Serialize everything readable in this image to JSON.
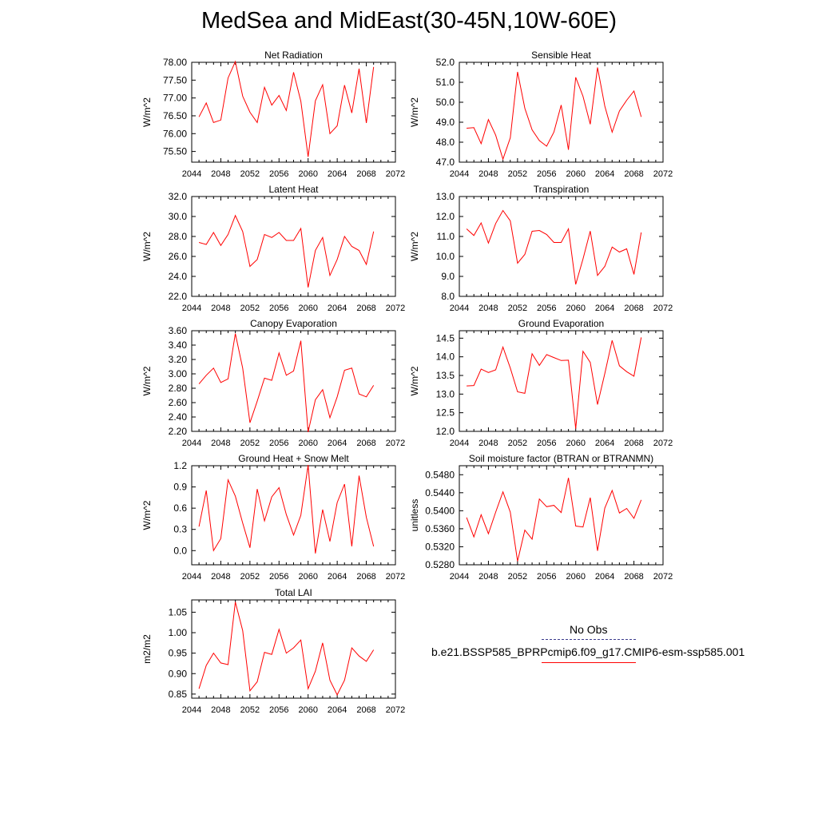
{
  "title": "MedSea and MidEast(30-45N,10W-60E)",
  "colors": {
    "series": "#ff0000",
    "obs": "#3a3a8c",
    "axis": "#000000"
  },
  "legend": {
    "obs_label": "No Obs",
    "model_label": "b.e21.BSSP585_BPRPcmip6.f09_g17.CMIP6-esm-ssp585.001"
  },
  "chart_data": [
    {
      "type": "line",
      "title": "Net Radiation",
      "ylabel": "W/m^2",
      "xlabel": "",
      "xlim": [
        2044,
        2072
      ],
      "ylim": [
        75.2,
        78.0
      ],
      "xticks": [
        2044,
        2048,
        2052,
        2056,
        2060,
        2064,
        2068,
        2072
      ],
      "yticks": [
        "75.50",
        "76.00",
        "76.50",
        "77.00",
        "77.50",
        "78.00"
      ],
      "series": [
        {
          "color": "#ff0000",
          "x": [
            2045,
            2046,
            2047,
            2048,
            2049,
            2050,
            2051,
            2052,
            2053,
            2054,
            2055,
            2056,
            2057,
            2058,
            2059,
            2060,
            2061,
            2062,
            2063,
            2064,
            2065,
            2066,
            2067,
            2068,
            2069
          ],
          "values": [
            76.47,
            76.86,
            76.31,
            76.38,
            77.56,
            78.02,
            77.05,
            76.6,
            76.31,
            77.3,
            76.8,
            77.07,
            76.65,
            77.72,
            76.91,
            75.35,
            76.92,
            77.37,
            76.0,
            76.22,
            77.36,
            76.58,
            77.82,
            76.3,
            77.87
          ]
        }
      ]
    },
    {
      "type": "line",
      "title": "Sensible Heat",
      "ylabel": "W/m^2",
      "xlabel": "",
      "xlim": [
        2044,
        2072
      ],
      "ylim": [
        47.0,
        52.0
      ],
      "xticks": [
        2044,
        2048,
        2052,
        2056,
        2060,
        2064,
        2068,
        2072
      ],
      "yticks": [
        "47.0",
        "48.0",
        "49.0",
        "50.0",
        "51.0",
        "52.0"
      ],
      "series": [
        {
          "color": "#ff0000",
          "x": [
            2045,
            2046,
            2047,
            2048,
            2049,
            2050,
            2051,
            2052,
            2053,
            2054,
            2055,
            2056,
            2057,
            2058,
            2059,
            2060,
            2061,
            2062,
            2063,
            2064,
            2065,
            2066,
            2067,
            2068,
            2069
          ],
          "values": [
            48.7,
            48.73,
            47.93,
            49.13,
            48.35,
            47.15,
            48.22,
            51.52,
            49.7,
            48.62,
            48.08,
            47.8,
            48.51,
            49.86,
            47.62,
            51.25,
            50.3,
            48.9,
            51.74,
            49.81,
            48.5,
            49.56,
            50.1,
            50.56,
            49.27
          ]
        }
      ]
    },
    {
      "type": "line",
      "title": "Latent Heat",
      "ylabel": "W/m^2",
      "xlabel": "",
      "xlim": [
        2044,
        2072
      ],
      "ylim": [
        22.0,
        32.0
      ],
      "xticks": [
        2044,
        2048,
        2052,
        2056,
        2060,
        2064,
        2068,
        2072
      ],
      "yticks": [
        "22.0",
        "24.0",
        "26.0",
        "28.0",
        "30.0",
        "32.0"
      ],
      "series": [
        {
          "color": "#ff0000",
          "x": [
            2045,
            2046,
            2047,
            2048,
            2049,
            2050,
            2051,
            2052,
            2053,
            2054,
            2055,
            2056,
            2057,
            2058,
            2059,
            2060,
            2061,
            2062,
            2063,
            2064,
            2065,
            2066,
            2067,
            2068,
            2069
          ],
          "values": [
            27.4,
            27.2,
            28.4,
            27.1,
            28.2,
            30.1,
            28.5,
            25.0,
            25.7,
            28.2,
            27.9,
            28.4,
            27.6,
            27.6,
            28.8,
            22.9,
            26.6,
            27.9,
            24.1,
            25.7,
            28.0,
            27.0,
            26.6,
            25.2,
            28.5
          ]
        }
      ]
    },
    {
      "type": "line",
      "title": "Transpiration",
      "ylabel": "W/m^2",
      "xlabel": "",
      "xlim": [
        2044,
        2072
      ],
      "ylim": [
        8.0,
        13.0
      ],
      "xticks": [
        2044,
        2048,
        2052,
        2056,
        2060,
        2064,
        2068,
        2072
      ],
      "yticks": [
        "8.0",
        "9.0",
        "10.0",
        "11.0",
        "12.0",
        "13.0"
      ],
      "series": [
        {
          "color": "#ff0000",
          "x": [
            2045,
            2046,
            2047,
            2048,
            2049,
            2050,
            2051,
            2052,
            2053,
            2054,
            2055,
            2056,
            2057,
            2058,
            2059,
            2060,
            2061,
            2062,
            2063,
            2064,
            2065,
            2066,
            2067,
            2068,
            2069
          ],
          "values": [
            11.38,
            11.05,
            11.68,
            10.67,
            11.65,
            12.3,
            11.78,
            9.66,
            10.1,
            11.26,
            11.3,
            11.1,
            10.7,
            10.7,
            11.38,
            8.6,
            9.87,
            11.27,
            9.05,
            9.5,
            10.47,
            10.22,
            10.38,
            9.1,
            11.2
          ]
        }
      ]
    },
    {
      "type": "line",
      "title": "Canopy Evaporation",
      "ylabel": "W/m^2",
      "xlabel": "",
      "xlim": [
        2044,
        2072
      ],
      "ylim": [
        2.2,
        3.6
      ],
      "xticks": [
        2044,
        2048,
        2052,
        2056,
        2060,
        2064,
        2068,
        2072
      ],
      "yticks": [
        "2.20",
        "2.40",
        "2.60",
        "2.80",
        "3.00",
        "3.20",
        "3.40",
        "3.60"
      ],
      "series": [
        {
          "color": "#ff0000",
          "x": [
            2045,
            2046,
            2047,
            2048,
            2049,
            2050,
            2051,
            2052,
            2053,
            2054,
            2055,
            2056,
            2057,
            2058,
            2059,
            2060,
            2061,
            2062,
            2063,
            2064,
            2065,
            2066,
            2067,
            2068,
            2069
          ],
          "values": [
            2.86,
            2.98,
            3.08,
            2.88,
            2.93,
            3.56,
            3.08,
            2.32,
            2.62,
            2.94,
            2.91,
            3.29,
            2.98,
            3.04,
            3.46,
            2.19,
            2.64,
            2.78,
            2.39,
            2.68,
            3.05,
            3.08,
            2.72,
            2.68,
            2.84
          ]
        }
      ]
    },
    {
      "type": "line",
      "title": "Ground Evaporation",
      "ylabel": "W/m^2",
      "xlabel": "",
      "xlim": [
        2044,
        2072
      ],
      "ylim": [
        12.0,
        14.7
      ],
      "xticks": [
        2044,
        2048,
        2052,
        2056,
        2060,
        2064,
        2068,
        2072
      ],
      "yticks": [
        "12.0",
        "12.5",
        "13.0",
        "13.5",
        "14.0",
        "14.5"
      ],
      "series": [
        {
          "color": "#ff0000",
          "x": [
            2045,
            2046,
            2047,
            2048,
            2049,
            2050,
            2051,
            2052,
            2053,
            2054,
            2055,
            2056,
            2057,
            2058,
            2059,
            2060,
            2061,
            2062,
            2063,
            2064,
            2065,
            2066,
            2067,
            2068,
            2069
          ],
          "values": [
            13.22,
            13.23,
            13.67,
            13.58,
            13.65,
            14.26,
            13.7,
            13.06,
            13.02,
            14.08,
            13.77,
            14.06,
            13.98,
            13.9,
            13.91,
            12.07,
            14.15,
            13.85,
            12.72,
            13.55,
            14.44,
            13.76,
            13.6,
            13.48,
            14.52
          ]
        }
      ]
    },
    {
      "type": "line",
      "title": "Ground Heat + Snow Melt",
      "ylabel": "W/m^2",
      "xlabel": "",
      "xlim": [
        2044,
        2072
      ],
      "ylim": [
        -0.2,
        1.2
      ],
      "xticks": [
        2044,
        2048,
        2052,
        2056,
        2060,
        2064,
        2068,
        2072
      ],
      "yticks": [
        "0.0",
        "0.3",
        "0.6",
        "0.9",
        "1.2"
      ],
      "series": [
        {
          "color": "#ff0000",
          "x": [
            2045,
            2046,
            2047,
            2048,
            2049,
            2050,
            2051,
            2052,
            2053,
            2054,
            2055,
            2056,
            2057,
            2058,
            2059,
            2060,
            2061,
            2062,
            2063,
            2064,
            2065,
            2066,
            2067,
            2068,
            2069
          ],
          "values": [
            0.34,
            0.85,
            0.0,
            0.17,
            1.0,
            0.77,
            0.39,
            0.04,
            0.87,
            0.42,
            0.76,
            0.89,
            0.51,
            0.22,
            0.5,
            1.21,
            -0.04,
            0.58,
            0.13,
            0.68,
            0.94,
            0.06,
            1.06,
            0.47,
            0.06
          ]
        }
      ]
    },
    {
      "type": "line",
      "title": "Soil moisture factor (BTRAN or BTRANMN)",
      "ylabel": "unitless",
      "xlabel": "",
      "xlim": [
        2044,
        2072
      ],
      "ylim": [
        0.528,
        0.55
      ],
      "xticks": [
        2044,
        2048,
        2052,
        2056,
        2060,
        2064,
        2068,
        2072
      ],
      "yticks": [
        "0.5280",
        "0.5320",
        "0.5360",
        "0.5400",
        "0.5440",
        "0.5480"
      ],
      "series": [
        {
          "color": "#ff0000",
          "x": [
            2045,
            2046,
            2047,
            2048,
            2049,
            2050,
            2051,
            2052,
            2053,
            2054,
            2055,
            2056,
            2057,
            2058,
            2059,
            2060,
            2061,
            2062,
            2063,
            2064,
            2065,
            2066,
            2067,
            2068,
            2069
          ],
          "values": [
            0.5385,
            0.5342,
            0.5391,
            0.5349,
            0.5397,
            0.5442,
            0.5397,
            0.5288,
            0.5357,
            0.5337,
            0.5426,
            0.5409,
            0.5412,
            0.5396,
            0.5473,
            0.5366,
            0.5364,
            0.5429,
            0.5311,
            0.5406,
            0.5445,
            0.5395,
            0.5405,
            0.5383,
            0.5424
          ]
        }
      ]
    },
    {
      "type": "line",
      "title": "Total LAI",
      "ylabel": "m2/m2",
      "xlabel": "",
      "xlim": [
        2044,
        2072
      ],
      "ylim": [
        0.84,
        1.08
      ],
      "xticks": [
        2044,
        2048,
        2052,
        2056,
        2060,
        2064,
        2068,
        2072
      ],
      "yticks": [
        "0.85",
        "0.90",
        "0.95",
        "1.00",
        "1.05"
      ],
      "series": [
        {
          "color": "#ff0000",
          "x": [
            2045,
            2046,
            2047,
            2048,
            2049,
            2050,
            2051,
            2052,
            2053,
            2054,
            2055,
            2056,
            2057,
            2058,
            2059,
            2060,
            2061,
            2062,
            2063,
            2064,
            2065,
            2066,
            2067,
            2068,
            2069
          ],
          "values": [
            0.863,
            0.92,
            0.95,
            0.926,
            0.922,
            1.075,
            1.005,
            0.858,
            0.88,
            0.952,
            0.947,
            1.008,
            0.95,
            0.963,
            0.982,
            0.863,
            0.906,
            0.975,
            0.884,
            0.848,
            0.884,
            0.963,
            0.943,
            0.93,
            0.958
          ]
        }
      ]
    }
  ]
}
